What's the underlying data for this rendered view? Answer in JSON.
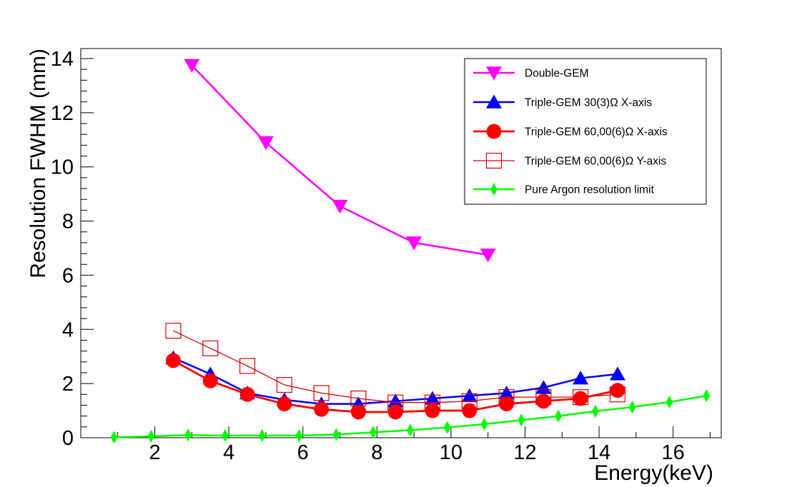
{
  "chart_data": {
    "type": "line",
    "title": "",
    "xlabel": "Energy(keV)",
    "ylabel": "Resolution FWHM (mm)",
    "xlim": [
      0.0,
      17.3
    ],
    "ylim": [
      0,
      14.0
    ],
    "xticks": [
      2,
      4,
      6,
      8,
      10,
      12,
      14,
      16
    ],
    "yticks": [
      0,
      2,
      4,
      6,
      8,
      10,
      12,
      14
    ],
    "xtick_labels": [
      "2",
      "4",
      "6",
      "8",
      "10",
      "12",
      "14",
      "16"
    ],
    "ytick_labels": [
      "0",
      "2",
      "4",
      "6",
      "8",
      "10",
      "12",
      "14"
    ],
    "legend_position": "top-right",
    "grid": false,
    "series": [
      {
        "name": "Double-GEM",
        "color": "#ff00ff",
        "marker": "triangle-down",
        "x": [
          3,
          5,
          7,
          9,
          11
        ],
        "y": [
          13.75,
          10.9,
          8.55,
          7.2,
          6.75
        ]
      },
      {
        "name": "Triple-GEM 30(3)Ω X-axis",
        "color": "#0000ff",
        "marker": "triangle-up",
        "x": [
          2.5,
          3.5,
          4.5,
          5.5,
          6.5,
          7.5,
          8.5,
          9.5,
          10.5,
          11.5,
          12.5,
          13.5,
          14.5
        ],
        "y": [
          2.95,
          2.35,
          1.65,
          1.4,
          1.25,
          1.25,
          1.35,
          1.45,
          1.55,
          1.65,
          1.85,
          2.2,
          2.35
        ]
      },
      {
        "name": "Triple-GEM 60,00(6)Ω X-axis",
        "color": "#ff0000",
        "marker": "circle",
        "x": [
          2.5,
          3.5,
          4.5,
          5.5,
          6.5,
          7.5,
          8.5,
          9.5,
          10.5,
          11.5,
          12.5,
          13.5,
          14.5
        ],
        "y": [
          2.85,
          2.1,
          1.6,
          1.25,
          1.05,
          0.95,
          0.95,
          1.0,
          1.0,
          1.25,
          1.35,
          1.45,
          1.75
        ]
      },
      {
        "name": "Triple-GEM 60,00(6)Ω Y-axis",
        "color": "#dd0000",
        "marker": "open-square",
        "x": [
          2.5,
          3.5,
          4.5,
          5.5,
          6.5,
          7.5,
          8.5,
          9.5,
          10.5,
          11.5,
          12.5,
          13.5,
          14.5
        ],
        "y": [
          3.95,
          3.3,
          2.65,
          1.95,
          1.65,
          1.45,
          1.3,
          1.3,
          1.35,
          1.5,
          1.5,
          1.5,
          1.6
        ]
      },
      {
        "name": "Pure Argon resolution limit",
        "color": "#00ff00",
        "marker": "diamond",
        "x": [
          0.9,
          1.9,
          2.9,
          3.9,
          4.9,
          5.9,
          6.9,
          7.9,
          8.9,
          9.9,
          10.9,
          11.9,
          12.9,
          13.9,
          14.9,
          15.9,
          16.9
        ],
        "y": [
          0.02,
          0.05,
          0.1,
          0.08,
          0.08,
          0.08,
          0.12,
          0.2,
          0.28,
          0.38,
          0.5,
          0.65,
          0.8,
          0.98,
          1.13,
          1.32,
          1.55
        ]
      }
    ]
  }
}
